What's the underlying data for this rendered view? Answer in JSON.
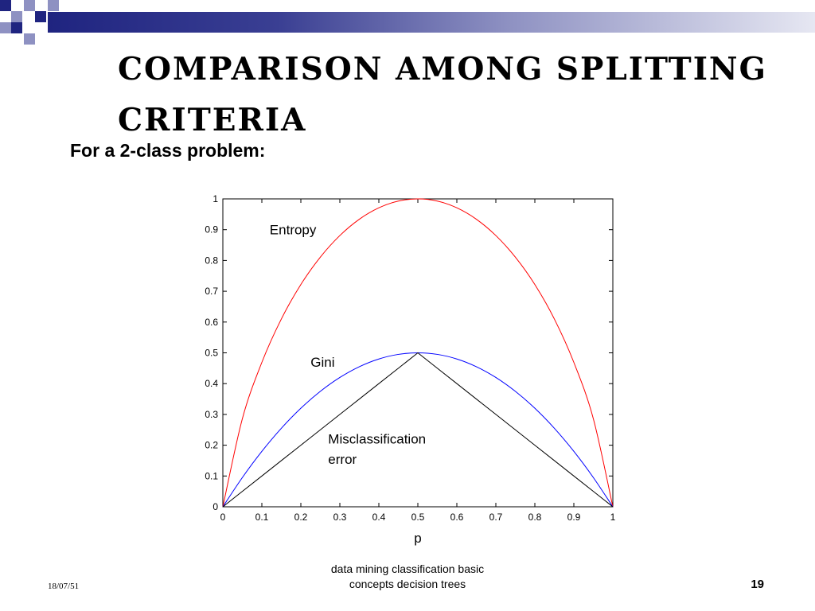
{
  "slide": {
    "title_line1": "Comparison among Splitting",
    "title_line2": "Criteria",
    "subtitle": "For a 2-class problem:",
    "footer_date": "18/07/51",
    "footer_line1": "data mining classification basic",
    "footer_line2": "concepts decision trees",
    "page_number": "19",
    "colors": {
      "decor_dark": "#1f2480",
      "decor_light": "#8e91c2"
    }
  },
  "chart_data": {
    "type": "line",
    "xlabel": "p",
    "ylabel": "",
    "xlim": [
      0,
      1
    ],
    "ylim": [
      0,
      1
    ],
    "x_ticks": [
      "0",
      "0.1",
      "0.2",
      "0.3",
      "0.4",
      "0.5",
      "0.6",
      "0.7",
      "0.8",
      "0.9",
      "1"
    ],
    "y_ticks": [
      "0",
      "0.1",
      "0.2",
      "0.3",
      "0.4",
      "0.5",
      "0.6",
      "0.7",
      "0.8",
      "0.9",
      "1"
    ],
    "x": [
      0,
      0.05,
      0.1,
      0.15,
      0.2,
      0.25,
      0.3,
      0.35,
      0.4,
      0.45,
      0.5,
      0.55,
      0.6,
      0.65,
      0.7,
      0.75,
      0.8,
      0.85,
      0.9,
      0.95,
      1
    ],
    "series": [
      {
        "name": "Entropy",
        "color": "#ff0000",
        "values": [
          0,
          0.286,
          0.469,
          0.61,
          0.722,
          0.811,
          0.881,
          0.934,
          0.971,
          0.993,
          1,
          0.993,
          0.971,
          0.934,
          0.881,
          0.811,
          0.722,
          0.61,
          0.469,
          0.286,
          0
        ]
      },
      {
        "name": "Gini",
        "color": "#0000ff",
        "values": [
          0,
          0.095,
          0.18,
          0.255,
          0.32,
          0.375,
          0.42,
          0.455,
          0.48,
          0.495,
          0.5,
          0.495,
          0.48,
          0.455,
          0.42,
          0.375,
          0.32,
          0.255,
          0.18,
          0.095,
          0
        ]
      },
      {
        "name": "Misclassification error",
        "color": "#000000",
        "values": [
          0,
          0.05,
          0.1,
          0.15,
          0.2,
          0.25,
          0.3,
          0.35,
          0.4,
          0.45,
          0.5,
          0.45,
          0.4,
          0.35,
          0.3,
          0.25,
          0.2,
          0.15,
          0.1,
          0.05,
          0
        ]
      }
    ],
    "annotations": [
      {
        "text": "Entropy",
        "x": 0.12,
        "y": 0.885
      },
      {
        "text": "Gini",
        "x": 0.225,
        "y": 0.455
      },
      {
        "text": "Misclassification",
        "x": 0.27,
        "y": 0.205
      },
      {
        "text": "error",
        "x": 0.27,
        "y": 0.14
      }
    ],
    "grid": false
  }
}
